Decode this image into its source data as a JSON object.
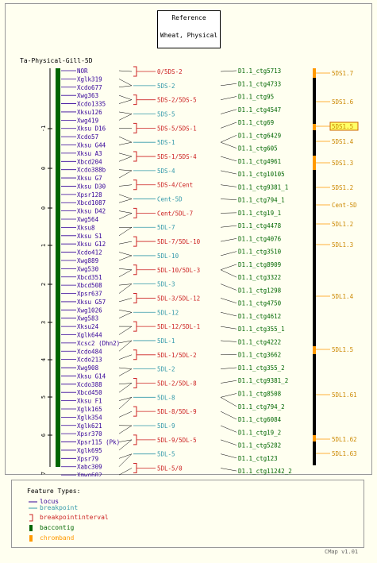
{
  "reference": {
    "line1": "Reference",
    "line2": "Wheat, Physical"
  },
  "map_title": "Ta-Physical-Gill-5D",
  "ruler": {
    "zero_at": 212,
    "labels": [
      "-1",
      "0",
      "0",
      "1",
      "2",
      "3",
      "4",
      "5",
      "6",
      "7"
    ]
  },
  "loci": [
    "NOR",
    "Xglk319",
    "Xcdo677",
    "Xwg363",
    "Xcdo1335",
    "Xksu126",
    "Xwg419",
    "Xksu D16",
    "Xcdo57",
    "Xksu G44",
    "Xksu A3",
    "Xbcd204",
    "Xcdo388b",
    "Xksu G7",
    "Xksu D30",
    "Xpsr128",
    "Xbcd1087",
    "Xksu D42",
    "Xwg564",
    "Xksu8",
    "Xksu S1",
    "Xksu G12",
    "Xcdo412",
    "Xwg889",
    "Xwg530",
    "Xbcd351",
    "Xbcd508",
    "Xpsr637",
    "Xksu G57",
    "Xwg1026",
    "Xwg583",
    "Xksu24",
    "Xglk644",
    "Xcsc2 (Dhn2)",
    "Xcdo484",
    "Xcdo213",
    "Xwg908",
    "Xksu G14",
    "Xcdo388",
    "Xbcd450",
    "Xksu F1",
    "Xglk165",
    "Xglk354",
    "Xglk621",
    "Xpsr370",
    "Xpsr115 (Pk)",
    "Xglk695",
    "Xpsr79",
    "Xabc309",
    "Xmwg602"
  ],
  "bins": [
    {
      "name": "0/5DS-2",
      "kind": "interval"
    },
    {
      "name": "5DS-2",
      "kind": "breakpoint"
    },
    {
      "name": "5DS-2/5DS-5",
      "kind": "interval"
    },
    {
      "name": "5DS-5",
      "kind": "breakpoint"
    },
    {
      "name": "5DS-5/5DS-1",
      "kind": "interval"
    },
    {
      "name": "5DS-1",
      "kind": "breakpoint"
    },
    {
      "name": "5DS-1/5DS-4",
      "kind": "interval"
    },
    {
      "name": "5DS-4",
      "kind": "breakpoint"
    },
    {
      "name": "5DS-4/Cent",
      "kind": "interval"
    },
    {
      "name": "Cent-5D",
      "kind": "breakpoint"
    },
    {
      "name": "Cent/5DL-7",
      "kind": "interval"
    },
    {
      "name": "5DL-7",
      "kind": "breakpoint"
    },
    {
      "name": "5DL-7/5DL-10",
      "kind": "interval"
    },
    {
      "name": "5DL-10",
      "kind": "breakpoint"
    },
    {
      "name": "5DL-10/5DL-3",
      "kind": "interval"
    },
    {
      "name": "5DL-3",
      "kind": "breakpoint"
    },
    {
      "name": "5DL-3/5DL-12",
      "kind": "interval"
    },
    {
      "name": "5DL-12",
      "kind": "breakpoint"
    },
    {
      "name": "5DL-12/5DL-1",
      "kind": "interval"
    },
    {
      "name": "5DL-1",
      "kind": "breakpoint"
    },
    {
      "name": "5DL-1/5DL-2",
      "kind": "interval"
    },
    {
      "name": "5DL-2",
      "kind": "breakpoint"
    },
    {
      "name": "5DL-2/5DL-8",
      "kind": "interval"
    },
    {
      "name": "5DL-8",
      "kind": "breakpoint"
    },
    {
      "name": "5DL-8/5DL-9",
      "kind": "interval"
    },
    {
      "name": "5DL-9",
      "kind": "breakpoint"
    },
    {
      "name": "5DL-9/5DL-5",
      "kind": "interval"
    },
    {
      "name": "5DL-5",
      "kind": "breakpoint"
    },
    {
      "name": "5DL-5/0",
      "kind": "interval"
    }
  ],
  "contigs": [
    "D1.1_ctg5713",
    "D1.1_ctg4733",
    "D1.1_ctg95",
    "D1.1_ctg4547",
    "D1.1_ctg69",
    "D1.1_ctg6429",
    "D1.1_ctg605",
    "D1.1_ctg4961",
    "D1.1_ctg10105",
    "D1.1_ctg9381_1",
    "D1.1_ctg794_1",
    "D1.1_ctg19_1",
    "D1.1_ctg4478",
    "D1.1_ctg4076",
    "D1.1_ctg3510",
    "D1.1_ctg8909",
    "D1.1_ctg3322",
    "D1.1_ctg1298",
    "D1.1_ctg4750",
    "D1.1_ctg4612",
    "D1.1_ctg355_1",
    "D1.1_ctg4222",
    "D1.1_ctg3662",
    "D1.1_ctg355_2",
    "D1.1_ctg9381_2",
    "D1.1_ctg8508",
    "D1.1_ctg794_2",
    "D1.1_ctg6084",
    "D1.1_ctg19_2",
    "D1.1_ctg5282",
    "D1.1_ctg123",
    "D1.1_ctg11242_2"
  ],
  "chrombands": [
    {
      "name": "5DS1.7",
      "highlight": false
    },
    {
      "name": "5DS1.6",
      "highlight": false
    },
    {
      "name": "5DS1.5",
      "highlight": true
    },
    {
      "name": "5DS1.4",
      "highlight": false
    },
    {
      "name": "5DS1.3",
      "highlight": false
    },
    {
      "name": "5DS1.2",
      "highlight": false
    },
    {
      "name": "Cent-5D",
      "highlight": false
    },
    {
      "name": "5DL1.2",
      "highlight": false
    },
    {
      "name": "5DL1.3",
      "highlight": false
    },
    {
      "name": "5DL1.4",
      "highlight": false
    },
    {
      "name": "5DL1.5",
      "highlight": false
    },
    {
      "name": "5DL1.61",
      "highlight": false
    },
    {
      "name": "5DL1.62",
      "highlight": false
    },
    {
      "name": "5DL1.63",
      "highlight": false
    }
  ],
  "legend": {
    "title": "Feature Types:",
    "items": [
      {
        "label": "locus",
        "color": "#330099"
      },
      {
        "label": "breakpoint",
        "color": "#3399aa"
      },
      {
        "label": "breakpointinterval",
        "color": "#cc2222"
      },
      {
        "label": "baccontig",
        "color": "#006600"
      },
      {
        "label": "chromband",
        "color": "#ff9900"
      }
    ]
  },
  "version": "CMap v1.01",
  "colors": {
    "background": "#fffff0",
    "locus": "#330099",
    "breakpoint": "#3399aa",
    "interval": "#cc2222",
    "contig": "#006600",
    "chromband": "#ff9900",
    "chromband_text": "#cc8800"
  }
}
